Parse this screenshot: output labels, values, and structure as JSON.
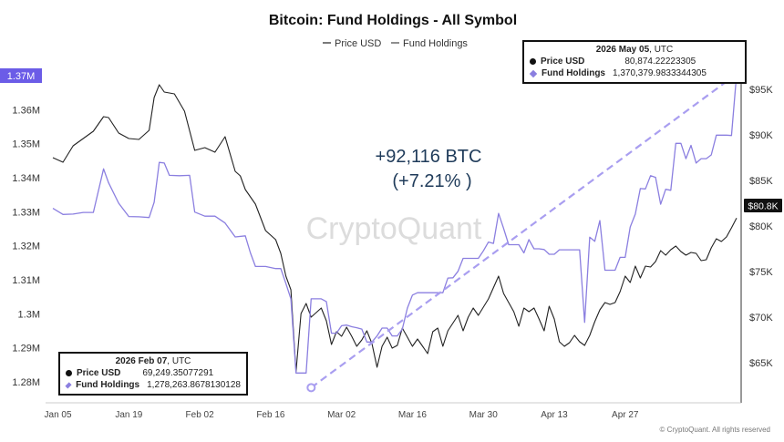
{
  "chart_data": {
    "type": "line",
    "title": "Bitcoin: Fund Holdings - All Symbol",
    "watermark": "CryptoQuant",
    "copyright": "© CryptoQuant. All rights reserved",
    "legend": [
      {
        "name": "Price USD",
        "color": "#222222"
      },
      {
        "name": "Fund Holdings",
        "color": "#8b7fe0"
      }
    ],
    "x_ticks": [
      "Jan 05",
      "Jan 19",
      "Feb 02",
      "Feb 16",
      "Mar 02",
      "Mar 16",
      "Mar 30",
      "Apr 13",
      "Apr 27"
    ],
    "y_left": {
      "ticks": [
        "1.28M",
        "1.29M",
        "1.3M",
        "1.31M",
        "1.32M",
        "1.33M",
        "1.34M",
        "1.35M",
        "1.36M",
        "1.37M"
      ],
      "range": [
        1275000,
        1380000
      ],
      "highlight": "1.37M",
      "highlight_color": "#6b5ce7"
    },
    "y_right": {
      "ticks": [
        "$65K",
        "$70K",
        "$75K",
        "$80K",
        "$85K",
        "$90K",
        "$95K"
      ],
      "range": [
        60500,
        98500
      ],
      "current": "$80.8K"
    },
    "series": [
      {
        "name": "Price USD",
        "color": "#222222",
        "points": [
          [
            0,
            87.5
          ],
          [
            2,
            87.0
          ],
          [
            4,
            88.8
          ],
          [
            6,
            89.6
          ],
          [
            8,
            90.4
          ],
          [
            10,
            92.0
          ],
          [
            11,
            91.9
          ],
          [
            13,
            90.2
          ],
          [
            15,
            89.6
          ],
          [
            17,
            89.5
          ],
          [
            19,
            90.5
          ],
          [
            20,
            94.1
          ],
          [
            21,
            95.5
          ],
          [
            22,
            94.7
          ],
          [
            24,
            94.5
          ],
          [
            26,
            92.6
          ],
          [
            28,
            88.3
          ],
          [
            30,
            88.6
          ],
          [
            32,
            88.1
          ],
          [
            34,
            89.8
          ],
          [
            36,
            86.0
          ],
          [
            37,
            85.5
          ],
          [
            38,
            84.0
          ],
          [
            40,
            82.4
          ],
          [
            42,
            79.5
          ],
          [
            44,
            78.5
          ],
          [
            45,
            77.0
          ],
          [
            46,
            74.5
          ],
          [
            47,
            73.0
          ],
          [
            48,
            64.0
          ],
          [
            49,
            70.4
          ],
          [
            50,
            71.5
          ],
          [
            51,
            70.0
          ],
          [
            53,
            71.0
          ],
          [
            54,
            69.6
          ],
          [
            55,
            67.0
          ],
          [
            56,
            68.4
          ],
          [
            57,
            67.9
          ],
          [
            58,
            68.9
          ],
          [
            59,
            67.9
          ],
          [
            60,
            66.8
          ],
          [
            61,
            67.5
          ],
          [
            62,
            68.5
          ],
          [
            63,
            67.1
          ],
          [
            64,
            64.5
          ],
          [
            65,
            66.8
          ],
          [
            66,
            67.8
          ],
          [
            67,
            66.6
          ],
          [
            68,
            66.9
          ],
          [
            69,
            68.8
          ],
          [
            70,
            67.8
          ],
          [
            71,
            66.8
          ],
          [
            72,
            67.6
          ],
          [
            73,
            66.8
          ],
          [
            74,
            66.0
          ],
          [
            75,
            68.4
          ],
          [
            76,
            68.8
          ],
          [
            77,
            66.8
          ],
          [
            78,
            68.5
          ],
          [
            80,
            70.2
          ],
          [
            81,
            68.5
          ],
          [
            82,
            70.0
          ],
          [
            83,
            71.0
          ],
          [
            84,
            70.2
          ],
          [
            86,
            72.0
          ],
          [
            88,
            74.5
          ],
          [
            89,
            72.6
          ],
          [
            90,
            71.6
          ],
          [
            91,
            70.6
          ],
          [
            92,
            69.0
          ],
          [
            93,
            71.0
          ],
          [
            94,
            70.6
          ],
          [
            95,
            71.0
          ],
          [
            96,
            69.8
          ],
          [
            97,
            68.5
          ],
          [
            98,
            71.2
          ],
          [
            99,
            69.8
          ],
          [
            100,
            67.3
          ],
          [
            101,
            66.8
          ],
          [
            102,
            67.2
          ],
          [
            103,
            68.0
          ],
          [
            104,
            67.3
          ],
          [
            105,
            66.9
          ],
          [
            106,
            68.0
          ],
          [
            107,
            69.5
          ],
          [
            108,
            70.8
          ],
          [
            109,
            71.6
          ],
          [
            110,
            71.4
          ],
          [
            111,
            71.6
          ],
          [
            112,
            72.8
          ],
          [
            113,
            74.5
          ],
          [
            114,
            73.8
          ],
          [
            115,
            75.6
          ],
          [
            116,
            74.3
          ],
          [
            117,
            75.6
          ],
          [
            118,
            75.5
          ],
          [
            119,
            76.1
          ],
          [
            120,
            77.3
          ],
          [
            121,
            76.8
          ],
          [
            122,
            77.4
          ],
          [
            123,
            77.8
          ],
          [
            124,
            77.2
          ],
          [
            125,
            76.8
          ],
          [
            126,
            77.1
          ],
          [
            127,
            77.0
          ],
          [
            128,
            76.2
          ],
          [
            129,
            76.3
          ],
          [
            130,
            77.6
          ],
          [
            131,
            78.6
          ],
          [
            132,
            78.3
          ],
          [
            133,
            78.8
          ],
          [
            134,
            79.8
          ],
          [
            135,
            80.87
          ]
        ]
      },
      {
        "name": "Fund Holdings",
        "color": "#8b7fe0",
        "points": [
          [
            0,
            1.331
          ],
          [
            2,
            1.3292
          ],
          [
            4,
            1.3293
          ],
          [
            6,
            1.3298
          ],
          [
            8,
            1.3298
          ],
          [
            10,
            1.3426
          ],
          [
            11,
            1.3385
          ],
          [
            13,
            1.3325
          ],
          [
            15,
            1.3286
          ],
          [
            17,
            1.3285
          ],
          [
            19,
            1.3283
          ],
          [
            20,
            1.3328
          ],
          [
            21,
            1.3445
          ],
          [
            22,
            1.3443
          ],
          [
            23,
            1.3407
          ],
          [
            25,
            1.3406
          ],
          [
            27,
            1.3407
          ],
          [
            28,
            1.3299
          ],
          [
            30,
            1.3287
          ],
          [
            32,
            1.3287
          ],
          [
            34,
            1.3267
          ],
          [
            36,
            1.3226
          ],
          [
            38,
            1.3229
          ],
          [
            39,
            1.3179
          ],
          [
            40,
            1.3139
          ],
          [
            42,
            1.3139
          ],
          [
            44,
            1.3133
          ],
          [
            45,
            1.3133
          ],
          [
            46,
            1.3089
          ],
          [
            47,
            1.3044
          ],
          [
            48,
            1.2826
          ],
          [
            49,
            1.2826
          ],
          [
            50,
            1.2826
          ],
          [
            51,
            1.3044
          ],
          [
            53,
            1.3044
          ],
          [
            54,
            1.3036
          ],
          [
            55,
            1.2943
          ],
          [
            56,
            1.2943
          ],
          [
            57,
            1.2965
          ],
          [
            58,
            1.2967
          ],
          [
            59,
            1.2962
          ],
          [
            60,
            1.2959
          ],
          [
            61,
            1.2955
          ],
          [
            62,
            1.2917
          ],
          [
            63,
            1.2917
          ],
          [
            64,
            1.2935
          ],
          [
            65,
            1.2958
          ],
          [
            66,
            1.2958
          ],
          [
            67,
            1.2935
          ],
          [
            68,
            1.2935
          ],
          [
            69,
            1.2955
          ],
          [
            70,
            1.3017
          ],
          [
            71,
            1.3055
          ],
          [
            72,
            1.3062
          ],
          [
            73,
            1.3062
          ],
          [
            74,
            1.3062
          ],
          [
            75,
            1.3062
          ],
          [
            76,
            1.3062
          ],
          [
            77,
            1.3062
          ],
          [
            78,
            1.3105
          ],
          [
            79,
            1.3106
          ],
          [
            80,
            1.3125
          ],
          [
            81,
            1.3163
          ],
          [
            82,
            1.3163
          ],
          [
            83,
            1.3163
          ],
          [
            84,
            1.3163
          ],
          [
            85,
            1.3185
          ],
          [
            86,
            1.3211
          ],
          [
            87,
            1.3207
          ],
          [
            88,
            1.3295
          ],
          [
            89,
            1.3251
          ],
          [
            90,
            1.3203
          ],
          [
            91,
            1.3203
          ],
          [
            92,
            1.3203
          ],
          [
            93,
            1.3179
          ],
          [
            94,
            1.3218
          ],
          [
            95,
            1.3191
          ],
          [
            96,
            1.3191
          ],
          [
            97,
            1.3189
          ],
          [
            98,
            1.3175
          ],
          [
            99,
            1.3175
          ],
          [
            100,
            1.3188
          ],
          [
            101,
            1.3188
          ],
          [
            102,
            1.3188
          ],
          [
            103,
            1.3188
          ],
          [
            104,
            1.3188
          ],
          [
            105,
            1.2975
          ],
          [
            106,
            1.3225
          ],
          [
            107,
            1.3213
          ],
          [
            108,
            1.3274
          ],
          [
            109,
            1.3128
          ],
          [
            110,
            1.3128
          ],
          [
            111,
            1.3128
          ],
          [
            112,
            1.3166
          ],
          [
            113,
            1.3166
          ],
          [
            114,
            1.3255
          ],
          [
            115,
            1.3293
          ],
          [
            116,
            1.3368
          ],
          [
            117,
            1.3367
          ],
          [
            118,
            1.3406
          ],
          [
            119,
            1.3401
          ],
          [
            120,
            1.3322
          ],
          [
            121,
            1.3366
          ],
          [
            122,
            1.3363
          ],
          [
            123,
            1.3501
          ],
          [
            124,
            1.3501
          ],
          [
            125,
            1.3456
          ],
          [
            126,
            1.3495
          ],
          [
            127,
            1.3443
          ],
          [
            128,
            1.3456
          ],
          [
            129,
            1.3456
          ],
          [
            130,
            1.3467
          ],
          [
            131,
            1.3525
          ],
          [
            132,
            1.3525
          ],
          [
            133,
            1.3525
          ],
          [
            134,
            1.3524
          ],
          [
            135,
            1.3704
          ]
        ]
      }
    ],
    "annotation_text": "+92,116 BTC",
    "annotation_pct": "(+7.21% )",
    "tooltip_start": {
      "date": "2026 Feb 07",
      "utc": ", UTC",
      "price_label": "Price USD",
      "price_value": "69,249.35077291",
      "holdings_label": "Fund Holdings",
      "holdings_value": "1,278,263.8678130128"
    },
    "tooltip_end": {
      "date": "2026 May 05",
      "utc": ", UTC",
      "price_label": "Price USD",
      "price_value": "80,874.22223305",
      "holdings_label": "Fund Holdings",
      "holdings_value": "1,370,379.9833344305"
    },
    "trend_arrow": {
      "from": [
        51,
        1.2783
      ],
      "to": [
        135,
        1.3704
      ]
    },
    "grid": false
  }
}
